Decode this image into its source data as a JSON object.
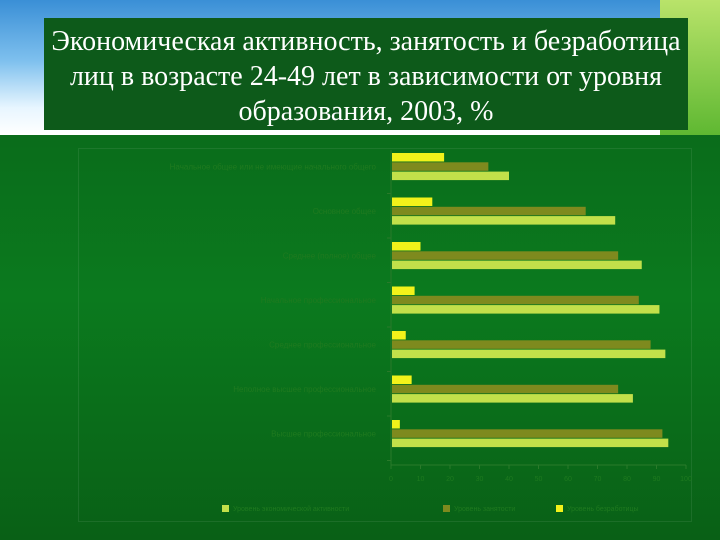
{
  "slide": {
    "title": "Экономическая активность, занятость и безработица лиц в возрасте 24-49 лет в зависимости от уровня образования, 2003, %"
  },
  "chart_data": {
    "type": "bar",
    "orientation": "horizontal",
    "categories": [
      "Начальное общее или не имеющие начального общего",
      "Основное общее",
      "Среднее (полное) общее",
      "Начальное профессиональное",
      "Среднее профессиональное",
      "Неполное высшее профессиональное",
      "Высшее профессиональное"
    ],
    "series": [
      {
        "name": "Уровень экономической активности",
        "color": "#c2e04a",
        "values": [
          40,
          76,
          85,
          91,
          93,
          82,
          94
        ]
      },
      {
        "name": "Уровень занятости",
        "color": "#7e8a1e",
        "values": [
          33,
          66,
          77,
          84,
          88,
          77,
          92
        ]
      },
      {
        "name": "Уровень безработицы",
        "color": "#f2f21a",
        "values": [
          18,
          14,
          10,
          8,
          5,
          7,
          3
        ]
      }
    ],
    "xlim": [
      0,
      100
    ],
    "xticks": [
      0,
      10,
      20,
      30,
      40,
      50,
      60,
      70,
      80,
      90,
      100
    ],
    "legend_position": "bottom",
    "grid": false
  }
}
